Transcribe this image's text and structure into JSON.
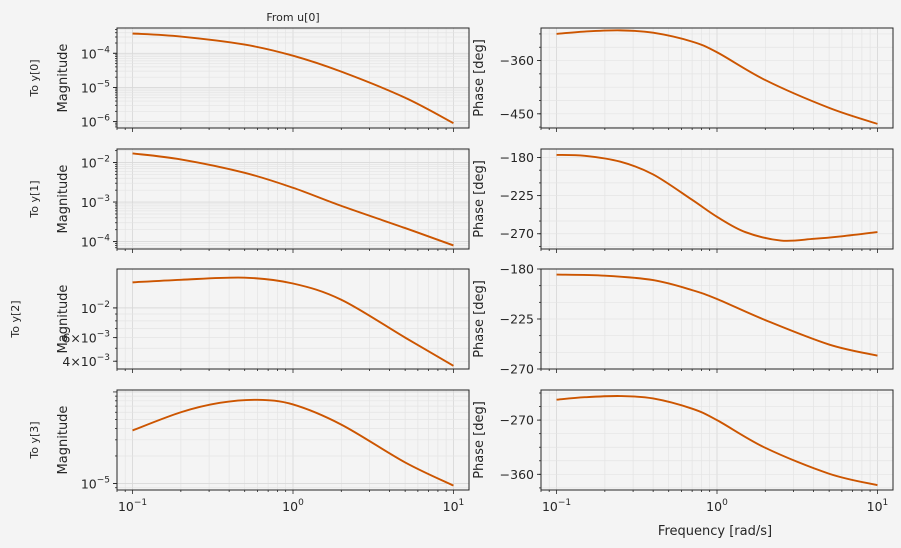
{
  "figure": {
    "column_title": "From u[0]",
    "frequency_label": "Frequency [rad/s]",
    "magnitude_label": "Magnitude",
    "phase_label": "Phase [deg]",
    "row_labels": [
      "To y[0]",
      "To y[1]",
      "To y[2]",
      "To y[3]"
    ],
    "line_color": "#cc5500",
    "background": "#f4f4f4",
    "grid": true
  },
  "chart_data": [
    {
      "type": "line",
      "panel": "magnitude",
      "row": 0,
      "yscale": "log",
      "xscale": "log",
      "xlim": [
        0.08,
        12.5
      ],
      "ylim": [
        6.5e-07,
        0.00055
      ],
      "yticks": [
        {
          "v": 1e-06,
          "b": "10",
          "e": "−6"
        },
        {
          "v": 1e-05,
          "b": "10",
          "e": "−5"
        },
        {
          "v": 0.0001,
          "b": "10",
          "e": "−4"
        }
      ],
      "series": [
        {
          "x": [
            0.1,
            0.2,
            0.5,
            1,
            2,
            5,
            10
          ],
          "y": [
            0.00038,
            0.00031,
            0.00018,
            8.5e-05,
            2.9e-05,
            5e-06,
            9e-07
          ]
        }
      ]
    },
    {
      "type": "line",
      "panel": "phase",
      "row": 0,
      "yscale": "linear",
      "xscale": "log",
      "xlim": [
        0.08,
        12.5
      ],
      "ylim": [
        -474,
        -305
      ],
      "yticks": [
        {
          "v": -360,
          "t": "−360"
        },
        {
          "v": -450,
          "t": "−450"
        }
      ],
      "series": [
        {
          "x": [
            0.1,
            0.15,
            0.25,
            0.4,
            0.7,
            1,
            2,
            5,
            10
          ],
          "y": [
            -315,
            -311,
            -309,
            -313,
            -328,
            -346,
            -393,
            -440,
            -467
          ]
        }
      ]
    },
    {
      "type": "line",
      "panel": "magnitude",
      "row": 1,
      "yscale": "log",
      "xscale": "log",
      "xlim": [
        0.08,
        12.5
      ],
      "ylim": [
        6.5e-05,
        0.022
      ],
      "yticks": [
        {
          "v": 0.0001,
          "b": "10",
          "e": "−4"
        },
        {
          "v": 0.001,
          "b": "10",
          "e": "−3"
        },
        {
          "v": 0.01,
          "b": "10",
          "e": "−2"
        }
      ],
      "series": [
        {
          "x": [
            0.1,
            0.2,
            0.5,
            1,
            2,
            5,
            10
          ],
          "y": [
            0.017,
            0.012,
            0.0055,
            0.0023,
            0.0008,
            0.00022,
            8e-05
          ]
        }
      ]
    },
    {
      "type": "line",
      "panel": "phase",
      "row": 1,
      "yscale": "linear",
      "xscale": "log",
      "xlim": [
        0.08,
        12.5
      ],
      "ylim": [
        -288,
        -170
      ],
      "yticks": [
        {
          "v": -180,
          "t": "−180"
        },
        {
          "v": -225,
          "t": "−225"
        },
        {
          "v": -270,
          "t": "−270"
        }
      ],
      "series": [
        {
          "x": [
            0.1,
            0.15,
            0.25,
            0.4,
            0.7,
            1,
            1.5,
            2.5,
            4,
            6,
            10
          ],
          "y": [
            -177,
            -178,
            -185,
            -200,
            -230,
            -250,
            -268,
            -278,
            -276,
            -273,
            -268
          ]
        }
      ]
    },
    {
      "type": "line",
      "panel": "magnitude",
      "row": 2,
      "yscale": "log",
      "xscale": "log",
      "xlim": [
        0.08,
        12.5
      ],
      "ylim": [
        0.0035,
        0.0195
      ],
      "yticks": [
        {
          "v": 0.004,
          "b": "4×10",
          "e": "−3"
        },
        {
          "v": 0.006,
          "b": "6×10",
          "e": "−3"
        },
        {
          "v": 0.01,
          "b": "10",
          "e": "−2"
        }
      ],
      "series": [
        {
          "x": [
            0.1,
            0.2,
            0.5,
            1,
            2,
            5,
            10
          ],
          "y": [
            0.0155,
            0.0162,
            0.0168,
            0.0152,
            0.0115,
            0.006,
            0.0037
          ]
        }
      ]
    },
    {
      "type": "line",
      "panel": "phase",
      "row": 2,
      "yscale": "linear",
      "xscale": "log",
      "xlim": [
        0.08,
        12.5
      ],
      "ylim": [
        -270,
        -180
      ],
      "yticks": [
        {
          "v": -180,
          "t": "−180"
        },
        {
          "v": -225,
          "t": "−225"
        },
        {
          "v": -270,
          "t": "−270"
        }
      ],
      "series": [
        {
          "x": [
            0.1,
            0.2,
            0.4,
            0.7,
            1,
            2,
            5,
            10
          ],
          "y": [
            -185,
            -186,
            -190,
            -199,
            -207,
            -226,
            -248,
            -258
          ]
        }
      ]
    },
    {
      "type": "line",
      "panel": "magnitude",
      "row": 3,
      "yscale": "log",
      "xscale": "log",
      "xlim": [
        0.08,
        12.5
      ],
      "ylim": [
        8.5e-06,
        0.000105
      ],
      "yticks": [
        {
          "v": 1e-05,
          "b": "10",
          "e": "−5"
        }
      ],
      "series": [
        {
          "x": [
            0.1,
            0.2,
            0.35,
            0.6,
            1,
            2,
            5,
            10
          ],
          "y": [
            3.8e-05,
            6e-05,
            7.6e-05,
            8.2e-05,
            7.3e-05,
            4.4e-05,
            1.7e-05,
            9.5e-06
          ]
        }
      ]
    },
    {
      "type": "line",
      "panel": "phase",
      "row": 3,
      "yscale": "linear",
      "xscale": "log",
      "xlim": [
        0.08,
        12.5
      ],
      "ylim": [
        -386,
        -220
      ],
      "yticks": [
        {
          "v": -270,
          "t": "−270"
        },
        {
          "v": -360,
          "t": "−360"
        }
      ],
      "series": [
        {
          "x": [
            0.1,
            0.15,
            0.25,
            0.4,
            0.7,
            1,
            2,
            5,
            10
          ],
          "y": [
            -236,
            -232,
            -230,
            -234,
            -251,
            -270,
            -316,
            -359,
            -378
          ]
        }
      ]
    }
  ],
  "xticks": [
    {
      "v": 0.1,
      "b": "10",
      "e": "−1"
    },
    {
      "v": 1,
      "b": "10",
      "e": "0"
    },
    {
      "v": 10,
      "b": "10",
      "e": "1"
    }
  ]
}
